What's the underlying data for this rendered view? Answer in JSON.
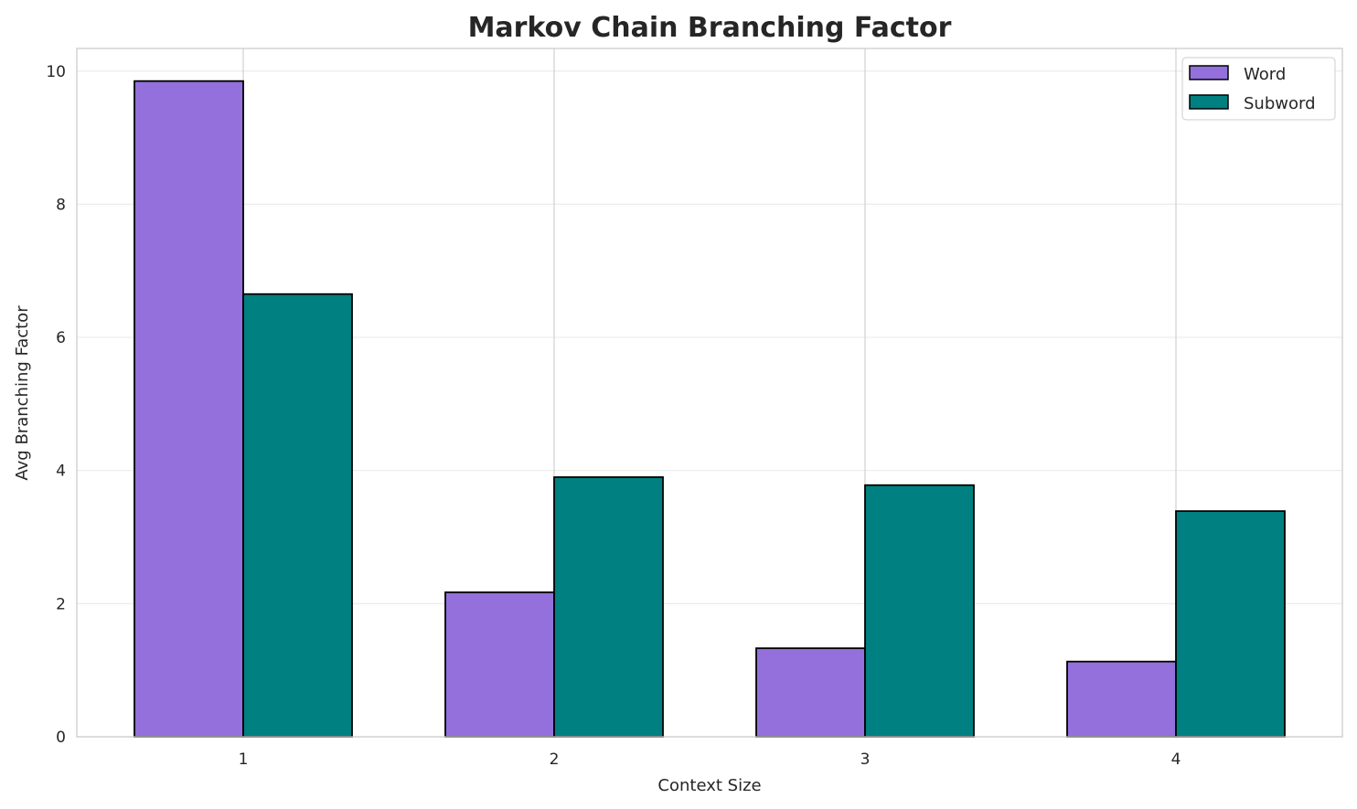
{
  "chart_data": {
    "type": "bar",
    "title": "Markov Chain Branching Factor",
    "xlabel": "Context Size",
    "ylabel": "Avg Branching Factor",
    "categories": [
      "1",
      "2",
      "3",
      "4"
    ],
    "series": [
      {
        "name": "Word",
        "color": "#9370db",
        "values": [
          9.85,
          2.17,
          1.33,
          1.13
        ]
      },
      {
        "name": "Subword",
        "color": "#008080",
        "values": [
          6.65,
          3.9,
          3.78,
          3.39
        ]
      }
    ],
    "yticks": [
      "0",
      "2",
      "4",
      "6",
      "8",
      "10"
    ],
    "ylim": [
      0,
      10.34
    ],
    "grid": true,
    "legend": "top-right"
  }
}
